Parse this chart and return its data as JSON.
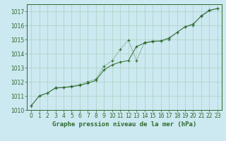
{
  "title": "Graphe pression niveau de la mer (hPa)",
  "background_color": "#cce8f0",
  "grid_color": "#b0d4c8",
  "line_color": "#2d6a2d",
  "ylim": [
    1010.0,
    1017.5
  ],
  "xlim": [
    -0.5,
    23.5
  ],
  "yticks": [
    1010,
    1011,
    1012,
    1013,
    1014,
    1015,
    1016,
    1017
  ],
  "xticks": [
    0,
    1,
    2,
    3,
    4,
    5,
    6,
    7,
    8,
    9,
    10,
    11,
    12,
    13,
    14,
    15,
    16,
    17,
    18,
    19,
    20,
    21,
    22,
    23
  ],
  "series1_x": [
    0,
    1,
    2,
    3,
    4,
    5,
    6,
    7,
    8,
    9,
    10,
    11,
    12,
    13,
    14,
    15,
    16,
    17,
    18,
    19,
    20,
    21,
    22,
    23
  ],
  "series1_y": [
    1010.3,
    1011.0,
    1011.2,
    1011.6,
    1011.6,
    1011.7,
    1011.8,
    1012.0,
    1012.2,
    1013.1,
    1013.5,
    1014.3,
    1014.95,
    1013.5,
    1014.8,
    1014.9,
    1014.9,
    1015.0,
    1015.5,
    1015.9,
    1016.0,
    1016.7,
    1017.1,
    1017.2
  ],
  "series2_x": [
    0,
    1,
    2,
    3,
    4,
    5,
    6,
    7,
    8,
    9,
    10,
    11,
    12,
    13,
    14,
    15,
    16,
    17,
    18,
    19,
    20,
    21,
    22,
    23
  ],
  "series2_y": [
    1010.3,
    1011.0,
    1011.2,
    1011.55,
    1011.6,
    1011.65,
    1011.75,
    1011.9,
    1012.1,
    1012.85,
    1013.2,
    1013.4,
    1013.5,
    1014.5,
    1014.75,
    1014.85,
    1014.9,
    1015.1,
    1015.5,
    1015.9,
    1016.1,
    1016.65,
    1017.05,
    1017.2
  ],
  "xlabel_fontsize": 6.5,
  "tick_fontsize": 5.5,
  "ylabel_left": true
}
